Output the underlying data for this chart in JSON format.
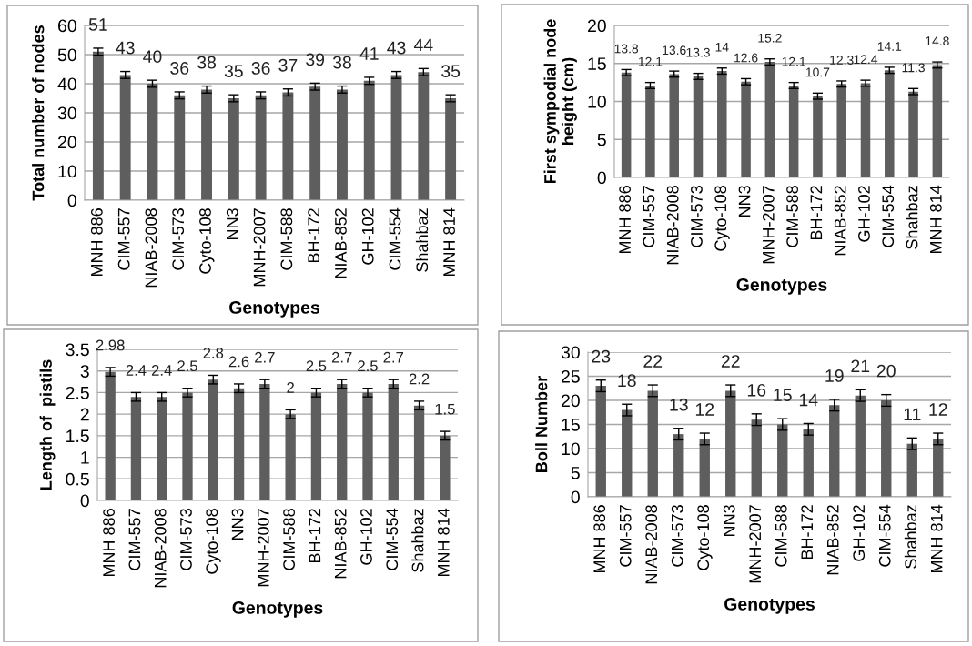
{
  "chart_data": [
    {
      "type": "bar",
      "xlabel": "Genotypes",
      "ylabel": "Total number of nodes",
      "categories": [
        "MNH 886",
        "CIM-557",
        "NIAB-2008",
        "CIM-573",
        "Cyto-108",
        "NN3",
        "MNH-2007",
        "CIM-588",
        "BH-172",
        "NIAB-852",
        "GH-102",
        "CIM-554",
        "Shahbaz",
        "MNH 814"
      ],
      "values": [
        51,
        43,
        40,
        36,
        38,
        35,
        36,
        37,
        39,
        38,
        41,
        43,
        44,
        35
      ],
      "errors": [
        1.2,
        1.2,
        1.2,
        1.2,
        1.2,
        1.2,
        1.2,
        1.2,
        1.2,
        1.2,
        1.2,
        1.2,
        1.2,
        1.2
      ],
      "color": "#5e5e5e",
      "ylim": [
        0,
        60
      ],
      "yticks": [
        0,
        10,
        20,
        30,
        40,
        50,
        60
      ],
      "grid": "y",
      "data_labels": true
    },
    {
      "type": "bar",
      "xlabel": "Genotypes",
      "ylabel": "First sympodial node height (cm)",
      "categories": [
        "MNH 886",
        "CIM-557",
        "NIAB-2008",
        "CIM-573",
        "Cyto-108",
        "NN3",
        "MNH-2007",
        "CIM-588",
        "BH-172",
        "NIAB-852",
        "GH-102",
        "CIM-554",
        "Shahbaz",
        "MNH 814"
      ],
      "values": [
        13.8,
        12.1,
        13.6,
        13.3,
        14,
        12.6,
        15.2,
        12.1,
        10.7,
        12.3,
        12.4,
        14.1,
        11.3,
        14.8
      ],
      "errors": [
        0.4,
        0.4,
        0.4,
        0.4,
        0.4,
        0.4,
        0.4,
        0.4,
        0.4,
        0.4,
        0.4,
        0.4,
        0.4,
        0.4
      ],
      "color": "#5e5e5e",
      "ylim": [
        0,
        20
      ],
      "yticks": [
        0,
        5,
        10,
        15,
        20
      ],
      "grid": "y",
      "data_labels": true
    },
    {
      "type": "bar",
      "xlabel": "Genotypes",
      "ylabel": "Length of  pistils",
      "categories": [
        "MNH 886",
        "CIM-557",
        "NIAB-2008",
        "CIM-573",
        "Cyto-108",
        "NN3",
        "MNH-2007",
        "CIM-588",
        "BH-172",
        "NIAB-852",
        "GH-102",
        "CIM-554",
        "Shahbaz",
        "MNH 814"
      ],
      "values": [
        2.98,
        2.4,
        2.4,
        2.5,
        2.8,
        2.6,
        2.7,
        2,
        2.5,
        2.7,
        2.5,
        2.7,
        2.2,
        1.5
      ],
      "errors": [
        0.1,
        0.1,
        0.1,
        0.1,
        0.1,
        0.1,
        0.1,
        0.1,
        0.1,
        0.1,
        0.1,
        0.1,
        0.1,
        0.1
      ],
      "color": "#5e5e5e",
      "ylim": [
        0,
        3.5
      ],
      "yticks": [
        0,
        0.5,
        1,
        1.5,
        2,
        2.5,
        3,
        3.5
      ],
      "grid": "y",
      "data_labels": true
    },
    {
      "type": "bar",
      "xlabel": "Genotypes",
      "ylabel": "Boll Number",
      "categories": [
        "MNH 886",
        "CIM-557",
        "NIAB-2008",
        "CIM-573",
        "Cyto-108",
        "NN3",
        "MNH-2007",
        "CIM-588",
        "BH-172",
        "NIAB-852",
        "GH-102",
        "CIM-554",
        "Shahbaz",
        "MNH 814"
      ],
      "values": [
        23,
        18,
        22,
        13,
        12,
        22,
        16,
        15,
        14,
        19,
        21,
        20,
        11,
        12
      ],
      "errors": [
        1.2,
        1.2,
        1.2,
        1.2,
        1.2,
        1.2,
        1.2,
        1.2,
        1.2,
        1.2,
        1.2,
        1.2,
        1.2,
        1.2
      ],
      "color": "#5e5e5e",
      "ylim": [
        0,
        30
      ],
      "yticks": [
        0,
        5,
        10,
        15,
        20,
        25,
        30
      ],
      "grid": "y",
      "data_labels": true
    }
  ]
}
